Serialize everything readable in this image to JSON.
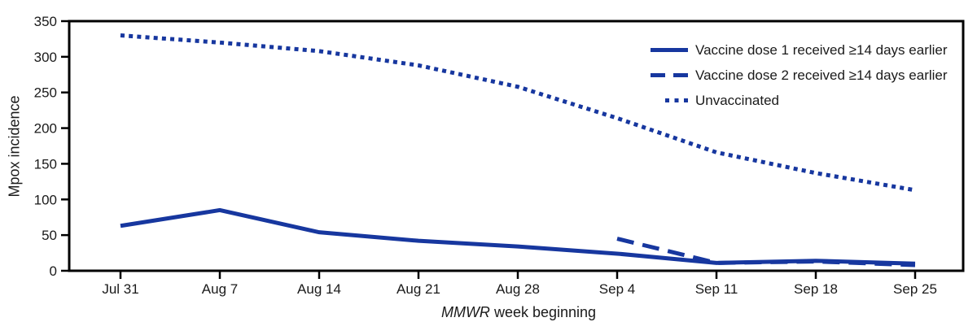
{
  "chart_data": {
    "type": "line",
    "ylabel": "Mpox incidence",
    "xlabel_italic": "MMWR",
    "xlabel_rest": " week beginning",
    "categories": [
      "Jul 31",
      "Aug 7",
      "Aug 14",
      "Aug 21",
      "Aug 28",
      "Sep 4",
      "Sep 11",
      "Sep 18",
      "Sep 25"
    ],
    "yticks": [
      0,
      50,
      100,
      150,
      200,
      250,
      300,
      350
    ],
    "ylim": [
      0,
      350
    ],
    "grid": false,
    "legend_position": "top-right-inside",
    "line_color": "#17379f",
    "series": [
      {
        "name": "Vaccine dose 1 received ≥14 days earlier",
        "style": "solid",
        "start_index": 0,
        "values": [
          63,
          85,
          54,
          42,
          34,
          24,
          11,
          14,
          10
        ]
      },
      {
        "name": "Vaccine dose 2 received ≥14 days earlier",
        "style": "dashed",
        "start_index": 5,
        "values": [
          45,
          11,
          13,
          8
        ]
      },
      {
        "name": "Unvaccinated",
        "style": "dotted",
        "start_index": 0,
        "values": [
          330,
          320,
          308,
          288,
          258,
          214,
          166,
          137,
          113
        ]
      }
    ]
  }
}
